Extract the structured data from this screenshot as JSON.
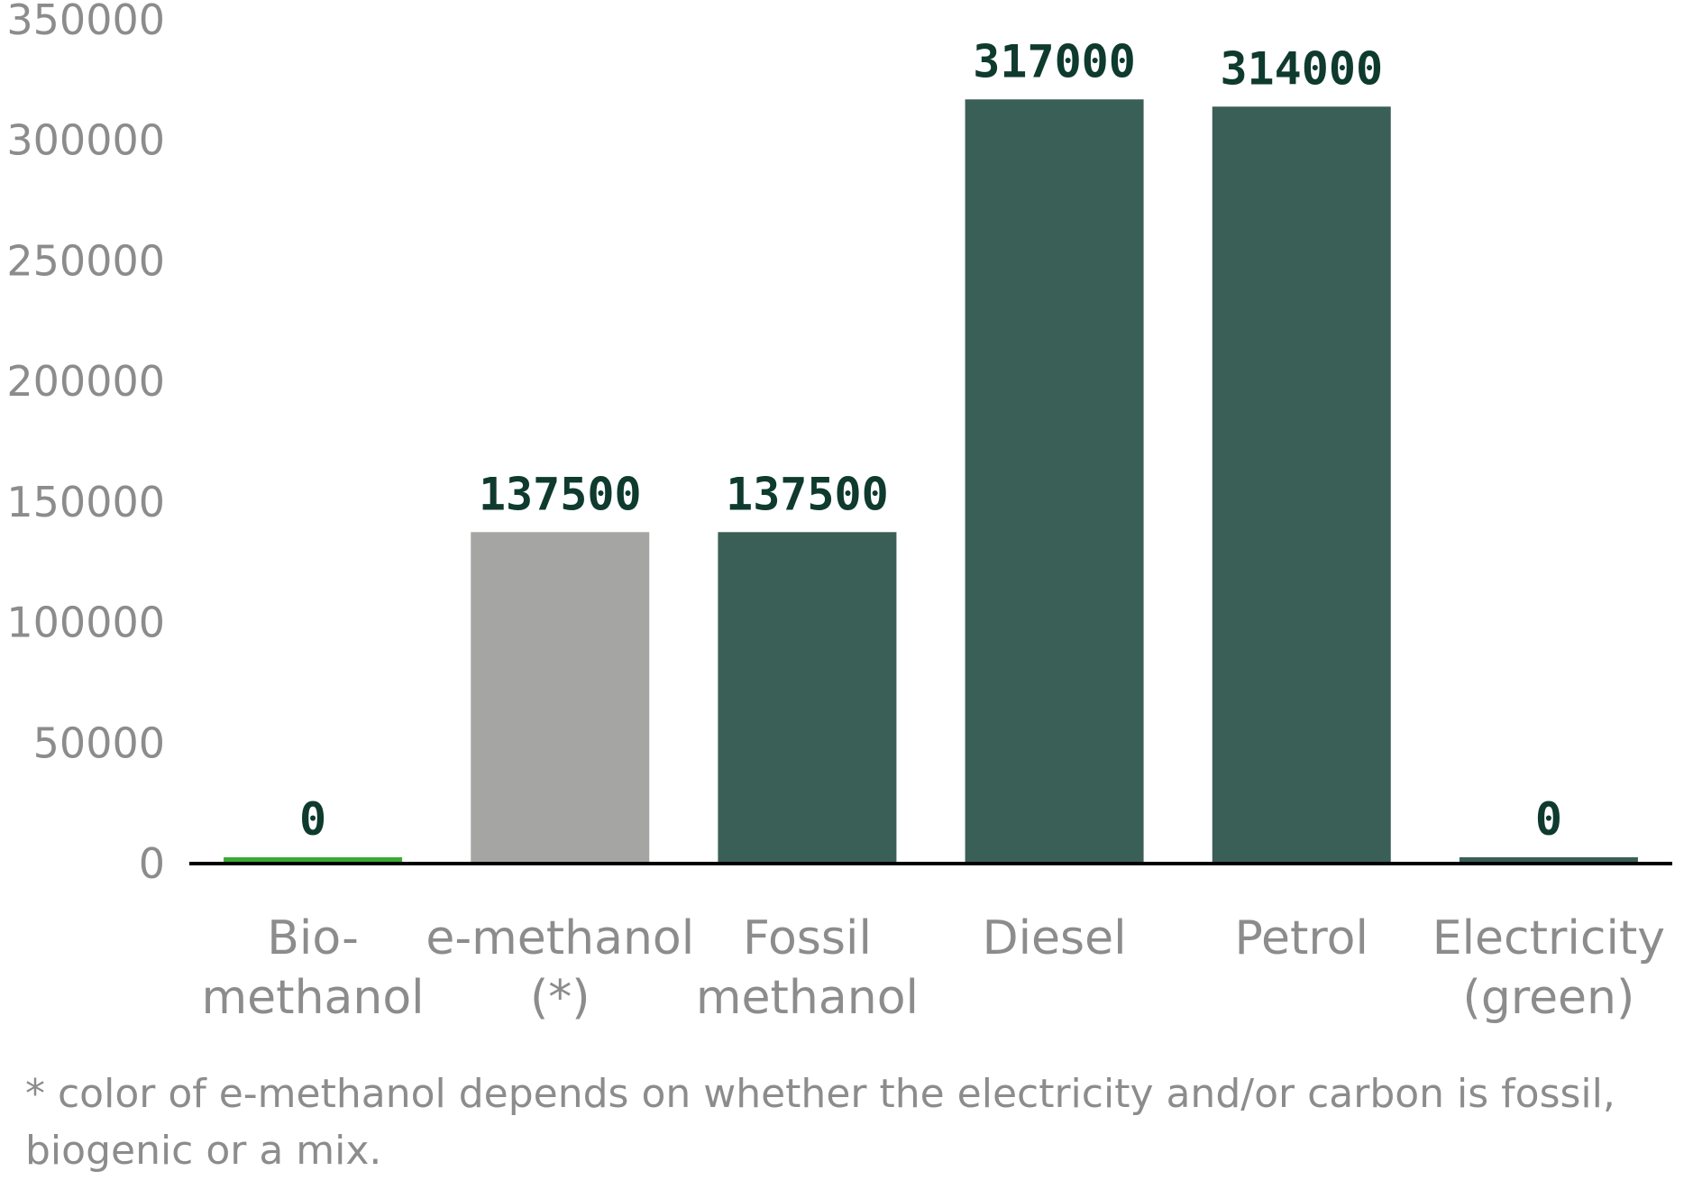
{
  "chart_data": {
    "type": "bar",
    "categories": [
      [
        "Bio-",
        "methanol"
      ],
      [
        "e-methanol",
        "(*)"
      ],
      [
        "Fossil",
        "methanol"
      ],
      [
        "Diesel"
      ],
      [
        "Petrol"
      ],
      [
        "Electricity",
        "(green)"
      ]
    ],
    "values": [
      0,
      137500,
      137500,
      317000,
      314000,
      0
    ],
    "data_labels": [
      "0",
      "137500",
      "137500",
      "317000",
      "314000",
      "0"
    ],
    "bar_colors": [
      "#3aaa35",
      "#a5a5a4",
      "#3a5f57",
      "#3a5f57",
      "#3a5f57",
      "#3a5f57"
    ],
    "ylim": [
      0,
      350000
    ],
    "yticks": [
      "0",
      "50000",
      "100000",
      "150000",
      "200000",
      "250000",
      "300000",
      "350000"
    ],
    "title": "",
    "xlabel": "",
    "ylabel": "",
    "grid": false,
    "legend": "none",
    "axis_color": "#000000"
  },
  "footnote": {
    "line1": "* color of e-methanol depends on whether the electricity and/or carbon is fossil,",
    "line2": "biogenic or a mix."
  }
}
